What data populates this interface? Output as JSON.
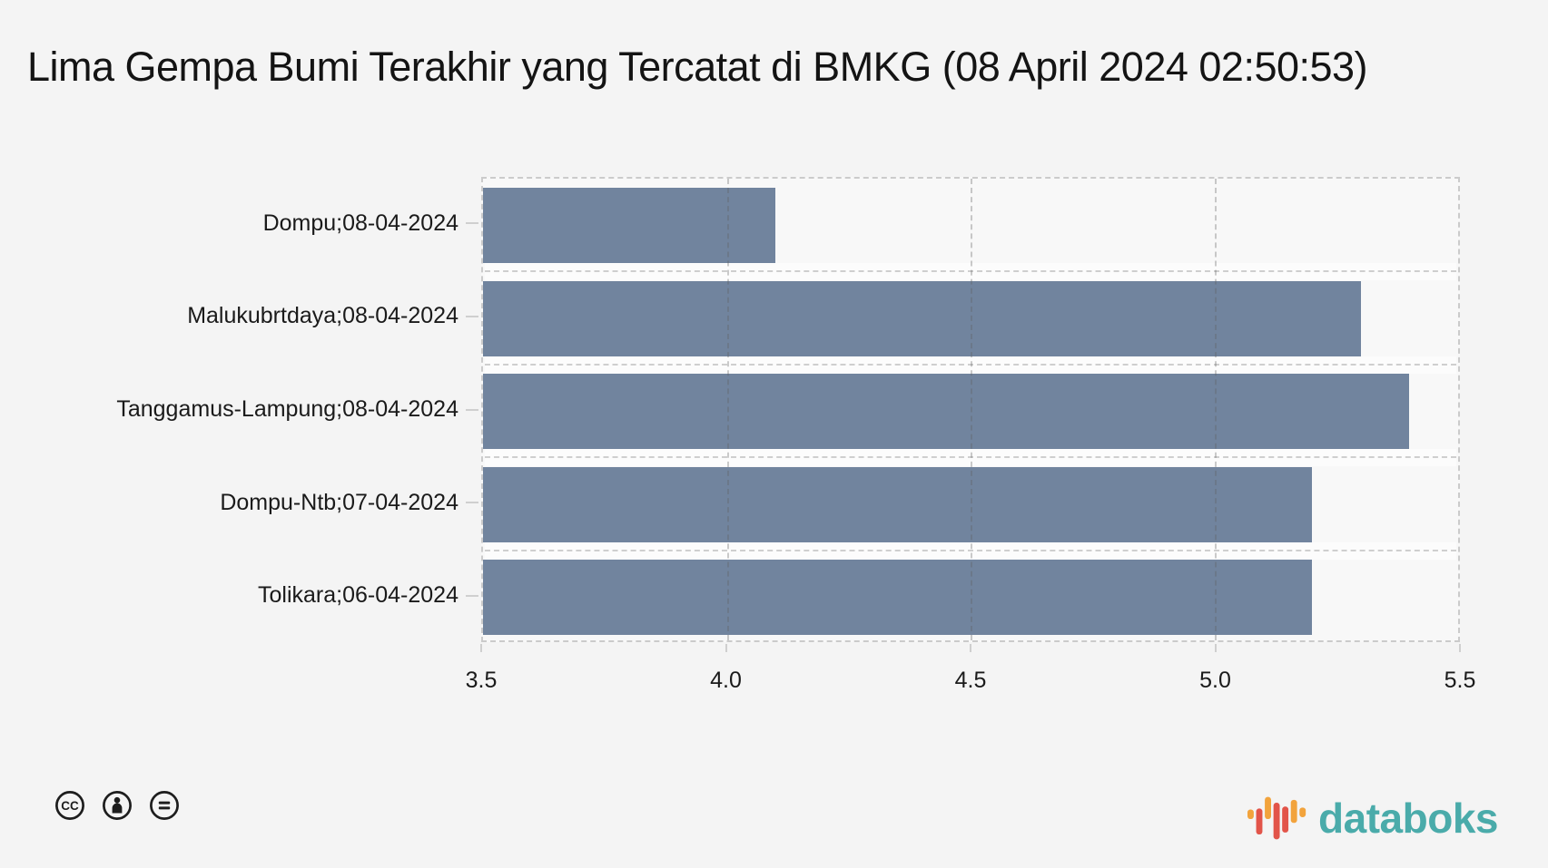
{
  "page": {
    "background_color": "#f4f4f4"
  },
  "title": {
    "text": "Lima Gempa Bumi Terakhir yang Tercatat di BMKG (08 April 2024 02:50:53)"
  },
  "chart_data": {
    "type": "bar",
    "orientation": "horizontal",
    "title": "Lima Gempa Bumi Terakhir yang Tercatat di BMKG (08 April 2024 02:50:53)",
    "categories": [
      "Dompu;08-04-2024",
      "Malukubrtdaya;08-04-2024",
      "Tanggamus-Lampung;08-04-2024",
      "Dompu-Ntb;07-04-2024",
      "Tolikara;06-04-2024"
    ],
    "values": [
      4.1,
      5.3,
      5.4,
      5.2,
      5.2
    ],
    "xlabel": "",
    "ylabel": "",
    "xlim": [
      3.5,
      5.5
    ],
    "xtick_labels": [
      "3.5",
      "4.0",
      "4.5",
      "5.0",
      "5.5"
    ],
    "grid": "dashed",
    "legend": "none",
    "bar_color": "#71849E",
    "grid_color": "#cfcfcf"
  },
  "footer": {
    "license": {
      "icons": [
        "cc-icon",
        "cc-attribution-icon",
        "cc-no-derivatives-icon"
      ],
      "icon_color": "#1d1d1d"
    },
    "brand": {
      "name": "databoks",
      "text_color": "#4AABAA",
      "logo_bar_colors": [
        "#F2A33C",
        "#E25449",
        "#F2A33C",
        "#E25449",
        "#E25449",
        "#F2A33C",
        "#F2A33C"
      ]
    }
  }
}
